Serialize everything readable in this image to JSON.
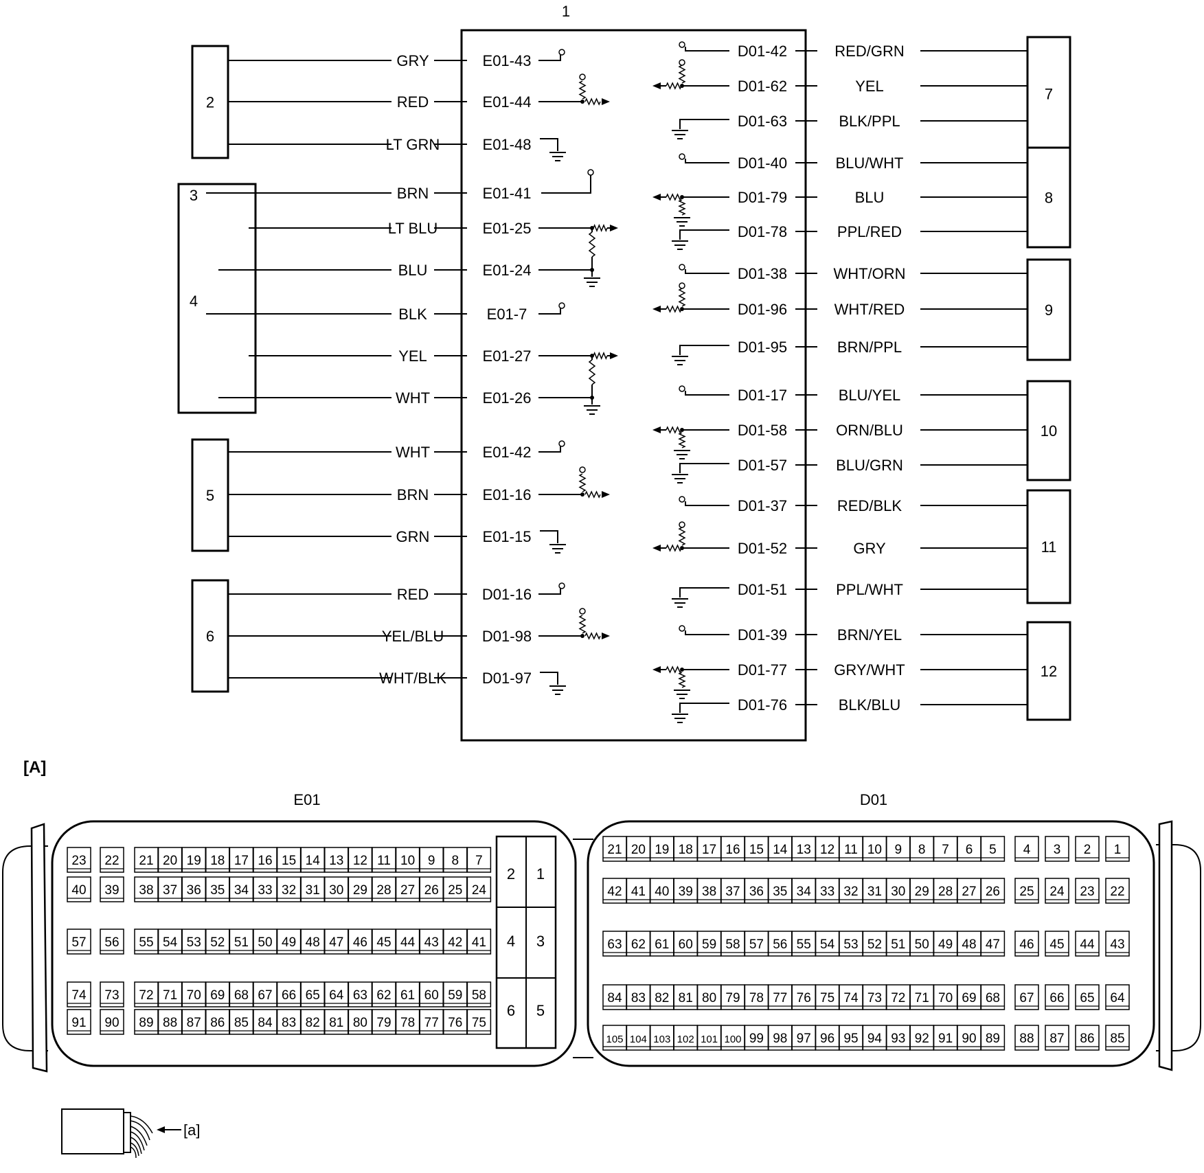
{
  "ecu_label": "1",
  "section_a_label": "[A]",
  "harness_label": "[a]",
  "connector_e01_label": "E01",
  "connector_d01_label": "D01",
  "left_components": [
    {
      "id": "2",
      "wires": [
        {
          "color": "GRY",
          "pin": "E01-43",
          "sym": "pullup"
        },
        {
          "color": "RED",
          "pin": "E01-44",
          "sym": "input"
        },
        {
          "color": "LT GRN",
          "pin": "E01-48",
          "sym": "ground"
        }
      ]
    },
    {
      "id": "3",
      "wires": [
        {
          "color": "BRN",
          "pin": "E01-41",
          "sym": "pullup"
        },
        {
          "color": "LT BLU",
          "pin": "E01-25",
          "sym": "input"
        },
        {
          "color": "BLU",
          "pin": "E01-24",
          "sym": "ground"
        }
      ]
    },
    {
      "id": "4",
      "wires": [
        {
          "color": "BLK",
          "pin": "E01-7",
          "sym": "pullup"
        },
        {
          "color": "YEL",
          "pin": "E01-27",
          "sym": "input"
        },
        {
          "color": "WHT",
          "pin": "E01-26",
          "sym": "ground"
        }
      ]
    },
    {
      "id": "5",
      "wires": [
        {
          "color": "WHT",
          "pin": "E01-42",
          "sym": "pullup"
        },
        {
          "color": "BRN",
          "pin": "E01-16",
          "sym": "input"
        },
        {
          "color": "GRN",
          "pin": "E01-15",
          "sym": "ground"
        }
      ]
    },
    {
      "id": "6",
      "wires": [
        {
          "color": "RED",
          "pin": "D01-16",
          "sym": "pullup"
        },
        {
          "color": "YEL/BLU",
          "pin": "D01-98",
          "sym": "input"
        },
        {
          "color": "WHT/BLK",
          "pin": "D01-97",
          "sym": "ground"
        }
      ]
    }
  ],
  "right_components": [
    {
      "id": "7",
      "wires": [
        {
          "color": "RED/GRN",
          "pin": "D01-42"
        },
        {
          "color": "YEL",
          "pin": "D01-62"
        },
        {
          "color": "BLK/PPL",
          "pin": "D01-63"
        }
      ]
    },
    {
      "id": "8",
      "wires": [
        {
          "color": "BLU/WHT",
          "pin": "D01-40"
        },
        {
          "color": "BLU",
          "pin": "D01-79"
        },
        {
          "color": "PPL/RED",
          "pin": "D01-78"
        }
      ]
    },
    {
      "id": "9",
      "wires": [
        {
          "color": "WHT/ORN",
          "pin": "D01-38"
        },
        {
          "color": "WHT/RED",
          "pin": "D01-96"
        },
        {
          "color": "BRN/PPL",
          "pin": "D01-95"
        }
      ]
    },
    {
      "id": "10",
      "wires": [
        {
          "color": "BLU/YEL",
          "pin": "D01-17"
        },
        {
          "color": "ORN/BLU",
          "pin": "D01-58"
        },
        {
          "color": "BLU/GRN",
          "pin": "D01-57"
        }
      ]
    },
    {
      "id": "11",
      "wires": [
        {
          "color": "RED/BLK",
          "pin": "D01-37"
        },
        {
          "color": "GRY",
          "pin": "D01-52"
        },
        {
          "color": "PPL/WHT",
          "pin": "D01-51"
        }
      ]
    },
    {
      "id": "12",
      "wires": [
        {
          "color": "BRN/YEL",
          "pin": "D01-39"
        },
        {
          "color": "GRY/WHT",
          "pin": "D01-77"
        },
        {
          "color": "BLK/BLU",
          "pin": "D01-76"
        }
      ]
    }
  ],
  "e01_rows": [
    [
      "23",
      "22",
      "21",
      "20",
      "19",
      "18",
      "17",
      "16",
      "15",
      "14",
      "13",
      "12",
      "11",
      "10",
      "9",
      "8",
      "7"
    ],
    [
      "40",
      "39",
      "38",
      "37",
      "36",
      "35",
      "34",
      "33",
      "32",
      "31",
      "30",
      "29",
      "28",
      "27",
      "26",
      "25",
      "24"
    ],
    [
      "57",
      "56",
      "55",
      "54",
      "53",
      "52",
      "51",
      "50",
      "49",
      "48",
      "47",
      "46",
      "45",
      "44",
      "43",
      "42",
      "41"
    ],
    [
      "74",
      "73",
      "72",
      "71",
      "70",
      "69",
      "68",
      "67",
      "66",
      "65",
      "64",
      "63",
      "62",
      "61",
      "60",
      "59",
      "58"
    ],
    [
      "91",
      "90",
      "89",
      "88",
      "87",
      "86",
      "85",
      "84",
      "83",
      "82",
      "81",
      "80",
      "79",
      "78",
      "77",
      "76",
      "75"
    ]
  ],
  "e01_big_pins": [
    "2",
    "1",
    "4",
    "3",
    "6",
    "5"
  ],
  "d01_rows": [
    [
      "21",
      "20",
      "19",
      "18",
      "17",
      "16",
      "15",
      "14",
      "13",
      "12",
      "11",
      "10",
      "9",
      "8",
      "7",
      "6",
      "5",
      "4",
      "3",
      "2",
      "1"
    ],
    [
      "42",
      "41",
      "40",
      "39",
      "38",
      "37",
      "36",
      "35",
      "34",
      "33",
      "32",
      "31",
      "30",
      "29",
      "28",
      "27",
      "26",
      "25",
      "24",
      "23",
      "22"
    ],
    [
      "63",
      "62",
      "61",
      "60",
      "59",
      "58",
      "57",
      "56",
      "55",
      "54",
      "53",
      "52",
      "51",
      "50",
      "49",
      "48",
      "47",
      "46",
      "45",
      "44",
      "43"
    ],
    [
      "84",
      "83",
      "82",
      "81",
      "80",
      "79",
      "78",
      "77",
      "76",
      "75",
      "74",
      "73",
      "72",
      "71",
      "70",
      "69",
      "68",
      "67",
      "66",
      "65",
      "64"
    ],
    [
      "105",
      "104",
      "103",
      "102",
      "101",
      "100",
      "99",
      "98",
      "97",
      "96",
      "95",
      "94",
      "93",
      "92",
      "91",
      "90",
      "89",
      "88",
      "87",
      "86",
      "85"
    ]
  ]
}
